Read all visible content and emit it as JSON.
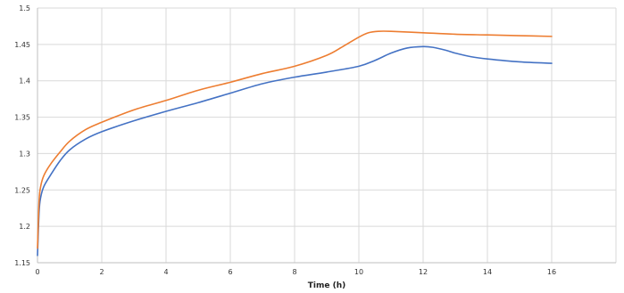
{
  "chart_data": {
    "type": "line",
    "title": "",
    "xlabel": "Time (h)",
    "ylabel": "",
    "xlim": [
      0,
      18
    ],
    "ylim": [
      1.15,
      1.5
    ],
    "x_ticks": [
      0,
      2,
      4,
      6,
      8,
      10,
      12,
      14,
      16
    ],
    "y_ticks": [
      1.15,
      1.2,
      1.25,
      1.3,
      1.35,
      1.4,
      1.45,
      1.5
    ],
    "x_tick_labels": [
      "0",
      "2",
      "4",
      "6",
      "8",
      "10",
      "12",
      "14",
      "16"
    ],
    "y_tick_labels": [
      "1.15",
      "1.2",
      "1.25",
      "1.3",
      "1.35",
      "1.4",
      "1.45",
      "1.5"
    ],
    "grid": true,
    "legend": "none",
    "series": [
      {
        "color": "#4472C4",
        "x": [
          0,
          0.05,
          0.1,
          0.2,
          0.4,
          0.7,
          1,
          1.5,
          2,
          3,
          4,
          5,
          6,
          7,
          8,
          9,
          10,
          10.5,
          11,
          11.5,
          12,
          12.3,
          12.7,
          13,
          13.5,
          14,
          15,
          16
        ],
        "y": [
          1.16,
          1.22,
          1.24,
          1.255,
          1.27,
          1.29,
          1.305,
          1.32,
          1.33,
          1.345,
          1.358,
          1.37,
          1.383,
          1.396,
          1.405,
          1.412,
          1.42,
          1.428,
          1.438,
          1.445,
          1.447,
          1.446,
          1.442,
          1.438,
          1.433,
          1.43,
          1.426,
          1.424
        ]
      },
      {
        "color": "#ED7D31",
        "x": [
          0,
          0.05,
          0.1,
          0.2,
          0.4,
          0.7,
          1,
          1.5,
          2,
          3,
          4,
          5,
          6,
          7,
          8,
          9,
          9.5,
          10,
          10.3,
          10.6,
          11,
          12,
          13,
          14,
          15,
          16
        ],
        "y": [
          1.17,
          1.235,
          1.255,
          1.27,
          1.285,
          1.302,
          1.317,
          1.333,
          1.343,
          1.36,
          1.373,
          1.387,
          1.398,
          1.41,
          1.42,
          1.435,
          1.447,
          1.46,
          1.466,
          1.468,
          1.468,
          1.466,
          1.464,
          1.463,
          1.462,
          1.461
        ]
      }
    ]
  }
}
